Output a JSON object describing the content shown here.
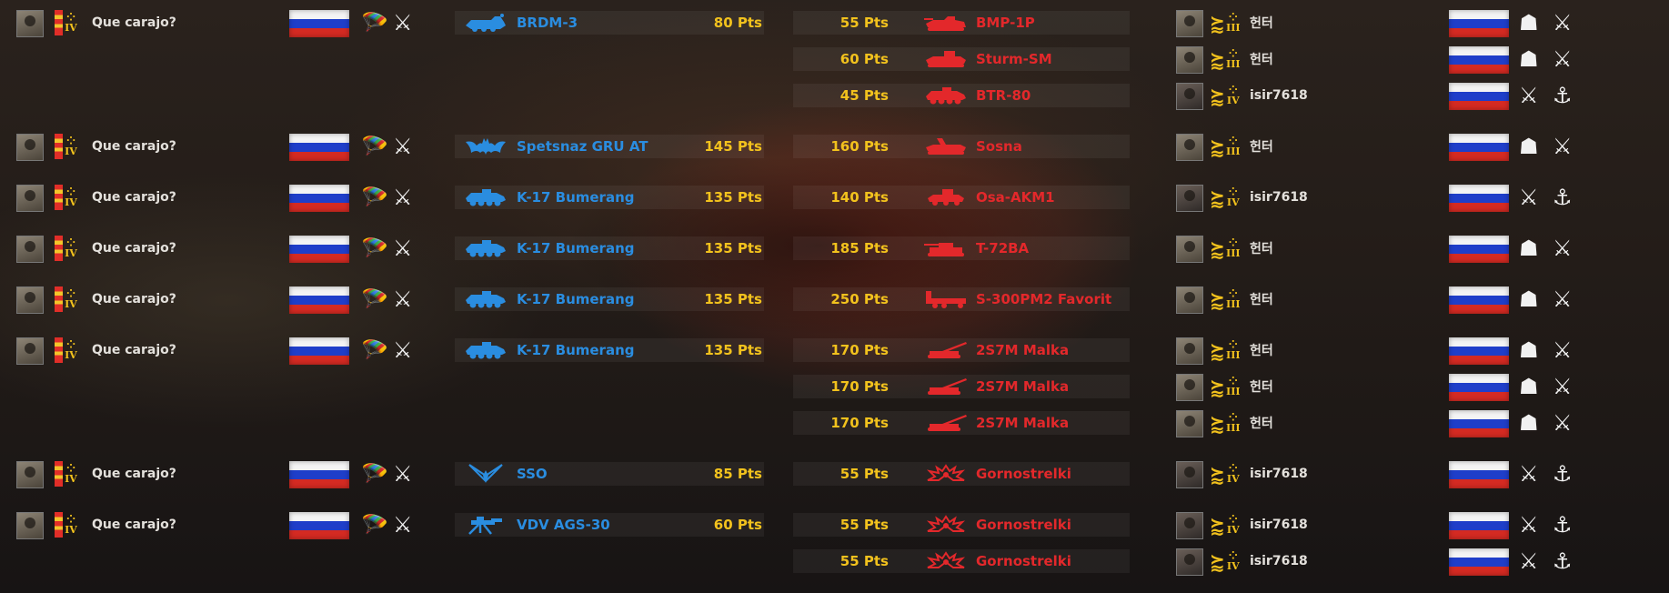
{
  "icons": {
    "parachute": "🪂",
    "crossed_weapons": "⚔",
    "anchor": "⚓",
    "beret": "☗",
    "chevron": "⋀"
  },
  "colors": {
    "blue_team": "#2a8de0",
    "red_team": "#e3282b",
    "points": "#f2c21d"
  },
  "rows": [
    {
      "left": {
        "player": "Que carajo?",
        "rank": "IV",
        "unit": "BRDM-3",
        "pts": "80 Pts",
        "icon": "recon-vehicle"
      },
      "right": {
        "player": "헌터",
        "rank": "III",
        "unit": "BMP-1P",
        "pts": "55 Pts",
        "icon": "ifv"
      }
    },
    {
      "left": null,
      "right": {
        "player": "헌터",
        "rank": "III",
        "unit": "Sturm-SM",
        "pts": "60 Pts",
        "icon": "atgm-vehicle"
      }
    },
    {
      "left": null,
      "right": {
        "player": "isir7618",
        "rank": "IV",
        "unit": "BTR-80",
        "pts": "45 Pts",
        "icon": "apc"
      }
    },
    {
      "left": {
        "player": "Que carajo?",
        "rank": "IV",
        "unit": "Spetsnaz GRU AT",
        "pts": "145 Pts",
        "icon": "bat"
      },
      "right": {
        "player": "헌터",
        "rank": "III",
        "unit": "Sosna",
        "pts": "160 Pts",
        "icon": "aa-vehicle"
      }
    },
    {
      "left": {
        "player": "Que carajo?",
        "rank": "IV",
        "unit": "K-17 Bumerang",
        "pts": "135 Pts",
        "icon": "apc"
      },
      "right": {
        "player": "isir7618",
        "rank": "IV",
        "unit": "Osa-AKM1",
        "pts": "140 Pts",
        "icon": "sam-vehicle"
      }
    },
    {
      "left": {
        "player": "Que carajo?",
        "rank": "IV",
        "unit": "K-17 Bumerang",
        "pts": "135 Pts",
        "icon": "apc"
      },
      "right": {
        "player": "헌터",
        "rank": "III",
        "unit": "T-72BA",
        "pts": "185 Pts",
        "icon": "tank"
      }
    },
    {
      "left": {
        "player": "Que carajo?",
        "rank": "IV",
        "unit": "K-17 Bumerang",
        "pts": "135 Pts",
        "icon": "apc"
      },
      "right": {
        "player": "헌터",
        "rank": "III",
        "unit": "S-300PM2 Favorit",
        "pts": "250 Pts",
        "icon": "sam-truck"
      }
    },
    {
      "left": {
        "player": "Que carajo?",
        "rank": "IV",
        "unit": "K-17 Bumerang",
        "pts": "135 Pts",
        "icon": "apc"
      },
      "right": {
        "player": "헌터",
        "rank": "III",
        "unit": "2S7M Malka",
        "pts": "170 Pts",
        "icon": "artillery"
      }
    },
    {
      "left": null,
      "right": {
        "player": "헌터",
        "rank": "III",
        "unit": "2S7M Malka",
        "pts": "170 Pts",
        "icon": "artillery"
      }
    },
    {
      "left": null,
      "right": {
        "player": "헌터",
        "rank": "III",
        "unit": "2S7M Malka",
        "pts": "170 Pts",
        "icon": "artillery"
      }
    },
    {
      "left": {
        "player": "Que carajo?",
        "rank": "IV",
        "unit": "SSO",
        "pts": "85 Pts",
        "icon": "sso-emblem"
      },
      "right": {
        "player": "isir7618",
        "rank": "IV",
        "unit": "Gornostrelki",
        "pts": "55 Pts",
        "icon": "infantry-emblem"
      }
    },
    {
      "left": {
        "player": "Que carajo?",
        "rank": "IV",
        "unit": "VDV AGS-30",
        "pts": "60 Pts",
        "icon": "grenade-launcher"
      },
      "right": {
        "player": "isir7618",
        "rank": "IV",
        "unit": "Gornostrelki",
        "pts": "55 Pts",
        "icon": "infantry-emblem"
      }
    },
    {
      "left": null,
      "right": {
        "player": "isir7618",
        "rank": "IV",
        "unit": "Gornostrelki",
        "pts": "55 Pts",
        "icon": "infantry-emblem"
      }
    }
  ]
}
